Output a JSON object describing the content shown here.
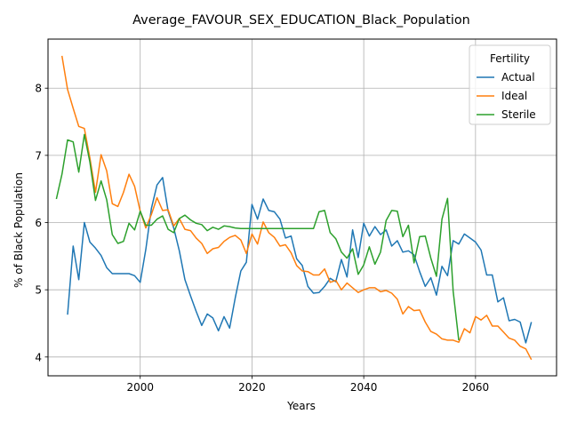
{
  "chart_data": {
    "type": "line",
    "title": "Average_FAVOUR_SEX_EDUCATION_Black_Population",
    "xlabel": "Years",
    "ylabel": "% of Black Population",
    "xlim": [
      1983.5,
      2074.5
    ],
    "ylim": [
      3.72,
      8.73
    ],
    "xticks": [
      2000,
      2020,
      2040,
      2060
    ],
    "yticks": [
      4,
      5,
      6,
      7,
      8
    ],
    "grid": true,
    "legend": {
      "title": "Fertility",
      "placement": "top-right"
    },
    "series": [
      {
        "name": "Actual",
        "color": "#1f77b4",
        "x": [
          1987,
          1988,
          1989,
          1990,
          1991,
          1992,
          1993,
          1994,
          1995,
          1996,
          1997,
          1998,
          1999,
          2000,
          2001,
          2002,
          2003,
          2004,
          2005,
          2006,
          2007,
          2008,
          2009,
          2010,
          2011,
          2012,
          2013,
          2014,
          2015,
          2016,
          2017,
          2018,
          2019,
          2020,
          2021,
          2022,
          2023,
          2024,
          2025,
          2026,
          2027,
          2028,
          2029,
          2030,
          2031,
          2032,
          2033,
          2034,
          2035,
          2036,
          2037,
          2038,
          2039,
          2040,
          2041,
          2042,
          2043,
          2044,
          2045,
          2046,
          2047,
          2048,
          2049,
          2050,
          2051,
          2052,
          2053,
          2054,
          2055,
          2056,
          2057,
          2058,
          2059,
          2060,
          2061,
          2062,
          2063,
          2064,
          2065,
          2066,
          2067,
          2068,
          2069,
          2070
        ],
        "values": [
          4.63,
          5.65,
          5.15,
          6.0,
          5.71,
          5.62,
          5.51,
          5.33,
          5.24,
          5.24,
          5.24,
          5.24,
          5.21,
          5.11,
          5.6,
          6.21,
          6.56,
          6.67,
          6.17,
          5.92,
          5.58,
          5.15,
          4.91,
          4.68,
          4.47,
          4.64,
          4.58,
          4.39,
          4.6,
          4.43,
          4.88,
          5.28,
          5.41,
          6.27,
          6.05,
          6.35,
          6.18,
          6.16,
          6.05,
          5.77,
          5.8,
          5.46,
          5.36,
          5.05,
          4.95,
          4.96,
          5.05,
          5.17,
          5.12,
          5.45,
          5.19,
          5.89,
          5.48,
          5.99,
          5.8,
          5.94,
          5.82,
          5.89,
          5.65,
          5.73,
          5.56,
          5.58,
          5.52,
          5.27,
          5.05,
          5.18,
          4.92,
          5.35,
          5.21,
          5.73,
          5.68,
          5.83,
          5.77,
          5.71,
          5.59,
          5.22,
          5.22,
          4.82,
          4.88,
          4.54,
          4.56,
          4.52,
          4.21,
          4.52
        ]
      },
      {
        "name": "Ideal",
        "color": "#ff7f0e",
        "x": [
          1986,
          1987,
          1988,
          1989,
          1990,
          1991,
          1992,
          1993,
          1994,
          1995,
          1996,
          1997,
          1998,
          1999,
          2000,
          2001,
          2002,
          2003,
          2004,
          2005,
          2006,
          2007,
          2008,
          2009,
          2010,
          2011,
          2012,
          2013,
          2014,
          2015,
          2016,
          2017,
          2018,
          2019,
          2020,
          2021,
          2022,
          2023,
          2024,
          2025,
          2026,
          2027,
          2028,
          2029,
          2030,
          2031,
          2032,
          2033,
          2034,
          2035,
          2036,
          2037,
          2038,
          2039,
          2040,
          2041,
          2042,
          2043,
          2044,
          2045,
          2046,
          2047,
          2048,
          2049,
          2050,
          2051,
          2052,
          2053,
          2054,
          2055,
          2056,
          2057,
          2058,
          2059,
          2060,
          2061,
          2062,
          2063,
          2064,
          2065,
          2066,
          2067,
          2068,
          2069,
          2070
        ],
        "values": [
          8.48,
          7.98,
          7.7,
          7.43,
          7.4,
          6.96,
          6.45,
          7.01,
          6.77,
          6.28,
          6.24,
          6.45,
          6.72,
          6.54,
          6.17,
          5.92,
          6.12,
          6.37,
          6.18,
          6.19,
          5.95,
          6.06,
          5.9,
          5.88,
          5.77,
          5.69,
          5.54,
          5.61,
          5.63,
          5.72,
          5.78,
          5.81,
          5.74,
          5.54,
          5.83,
          5.68,
          6.01,
          5.85,
          5.78,
          5.65,
          5.67,
          5.55,
          5.36,
          5.28,
          5.27,
          5.22,
          5.22,
          5.31,
          5.11,
          5.14,
          5.0,
          5.1,
          5.03,
          4.96,
          5.0,
          5.03,
          5.03,
          4.97,
          4.99,
          4.95,
          4.86,
          4.64,
          4.75,
          4.69,
          4.7,
          4.52,
          4.38,
          4.34,
          4.27,
          4.25,
          4.25,
          4.22,
          4.42,
          4.36,
          4.6,
          4.55,
          4.62,
          4.46,
          4.46,
          4.37,
          4.28,
          4.25,
          4.16,
          4.12,
          3.96
        ]
      },
      {
        "name": "Sterile",
        "color": "#2ca02c",
        "x": [
          1985,
          1986,
          1987,
          1988,
          1989,
          1990,
          1991,
          1992,
          1993,
          1994,
          1995,
          1996,
          1997,
          1998,
          1999,
          2000,
          2001,
          2002,
          2003,
          2004,
          2005,
          2006,
          2007,
          2008,
          2009,
          2010,
          2011,
          2012,
          2013,
          2014,
          2015,
          2016,
          2017,
          2018,
          2019,
          2020,
          2021,
          2022,
          2023,
          2024,
          2025,
          2026,
          2027,
          2028,
          2029,
          2030,
          2031,
          2032,
          2033,
          2034,
          2035,
          2036,
          2037,
          2038,
          2039,
          2040,
          2041,
          2042,
          2043,
          2044,
          2045,
          2046,
          2047,
          2048,
          2049,
          2050,
          2051,
          2052,
          2053,
          2054,
          2055,
          2056,
          2057
        ],
        "values": [
          6.35,
          6.72,
          7.23,
          7.2,
          6.75,
          7.31,
          6.9,
          6.33,
          6.62,
          6.34,
          5.82,
          5.69,
          5.72,
          5.99,
          5.89,
          6.17,
          5.96,
          5.96,
          6.05,
          6.1,
          5.9,
          5.85,
          6.06,
          6.11,
          6.04,
          5.99,
          5.97,
          5.88,
          5.93,
          5.9,
          5.95,
          5.94,
          5.92,
          5.91,
          5.91,
          5.91,
          5.91,
          5.91,
          5.91,
          5.91,
          5.91,
          5.91,
          5.91,
          5.91,
          5.91,
          5.91,
          5.91,
          6.16,
          6.18,
          5.85,
          5.76,
          5.56,
          5.47,
          5.61,
          5.23,
          5.37,
          5.64,
          5.38,
          5.56,
          6.03,
          6.18,
          6.17,
          5.79,
          5.96,
          5.4,
          5.79,
          5.8,
          5.47,
          5.2,
          6.05,
          6.36,
          4.98,
          4.25
        ]
      }
    ]
  }
}
